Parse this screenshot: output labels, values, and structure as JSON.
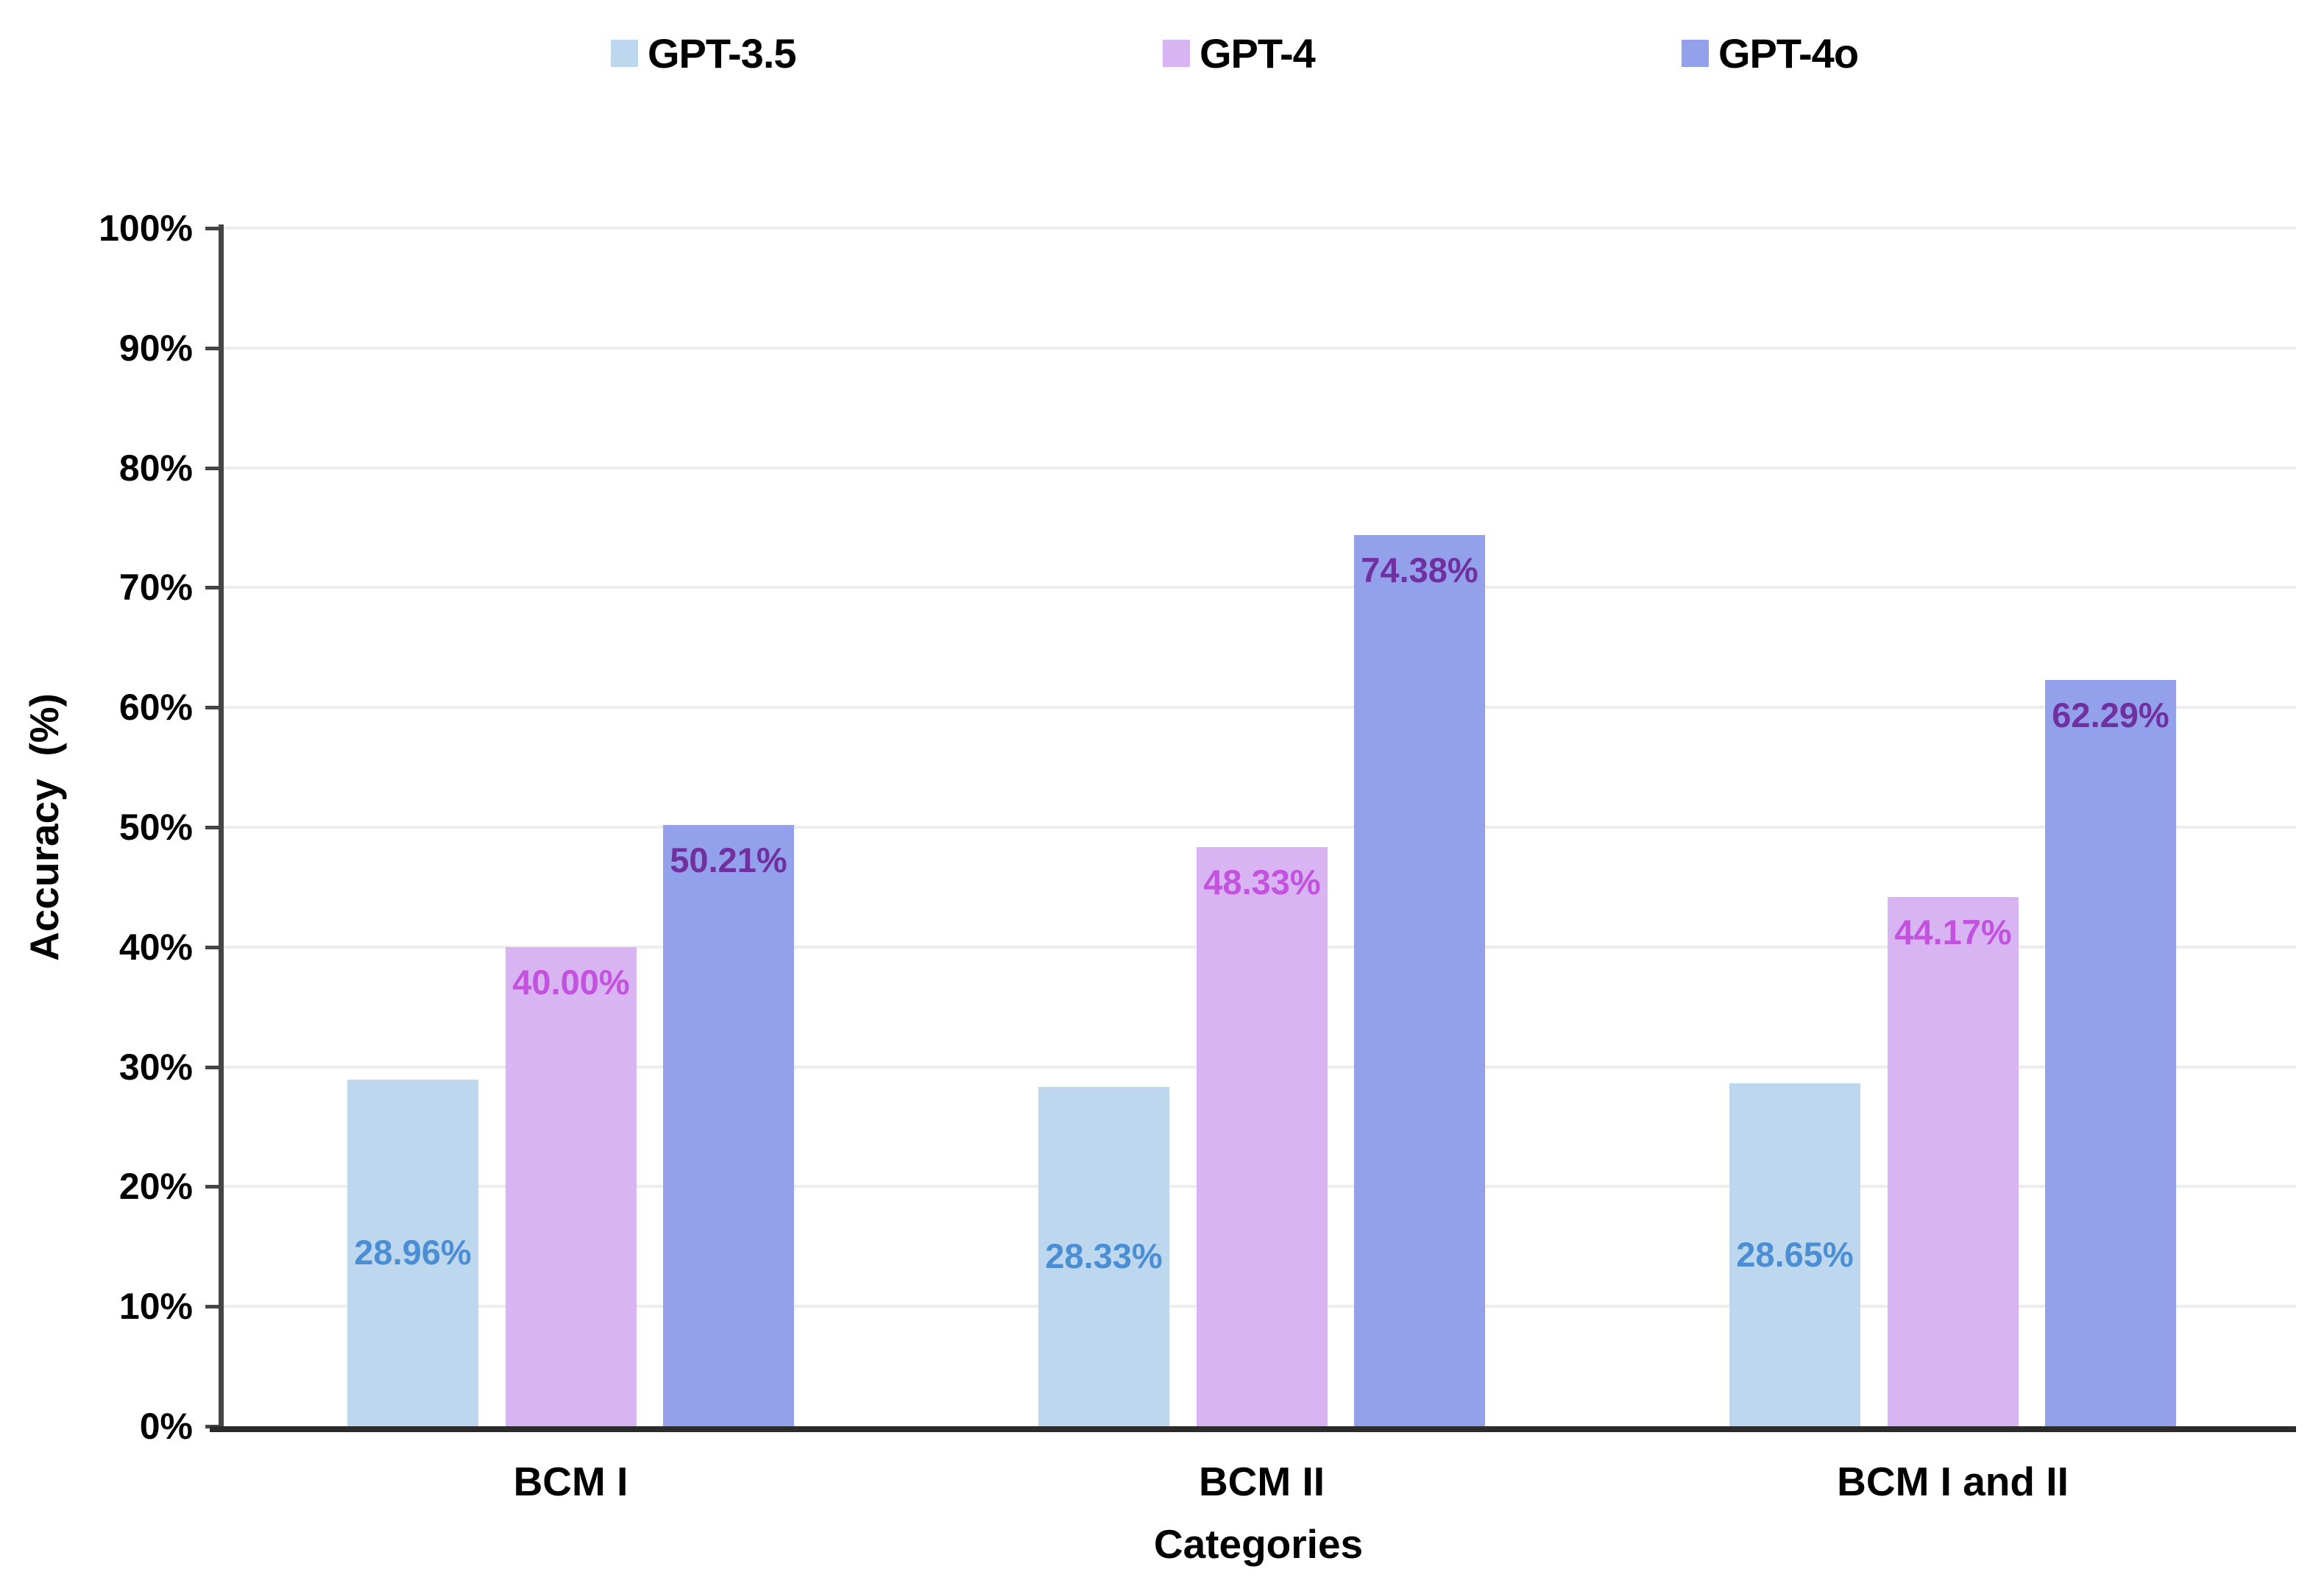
{
  "chart_data": {
    "type": "bar",
    "title": "",
    "xlabel": "Categories",
    "ylabel": "Accuracy  (%)",
    "categories": [
      "BCM I",
      "BCM II",
      "BCM I and II"
    ],
    "series": [
      {
        "name": "GPT-3.5",
        "color": "#bdd7ee",
        "label_color": "#4b8ed3",
        "values": [
          28.96,
          28.33,
          28.65
        ],
        "labels": [
          "28.96%",
          "28.33%",
          "28.65%"
        ],
        "label_position": "inside-center"
      },
      {
        "name": "GPT-4",
        "color": "#d8b4f2",
        "label_color": "#c352de",
        "values": [
          40.0,
          48.33,
          44.17
        ],
        "labels": [
          "40.00%",
          "48.33%",
          "44.17%"
        ],
        "label_position": "inside-top"
      },
      {
        "name": "GPT-4o",
        "color": "#93a0ec",
        "label_color": "#7030a0",
        "values": [
          50.21,
          74.38,
          62.29
        ],
        "labels": [
          "50.21%",
          "74.38%",
          "62.29%"
        ],
        "label_position": "inside-top"
      }
    ],
    "ylim": [
      0,
      100
    ],
    "ytick_step": 10,
    "ytick_labels": [
      "0%",
      "10%",
      "20%",
      "30%",
      "40%",
      "50%",
      "60%",
      "70%",
      "80%",
      "90%",
      "100%"
    ],
    "grid": "horizontal",
    "legend_position": "top"
  }
}
